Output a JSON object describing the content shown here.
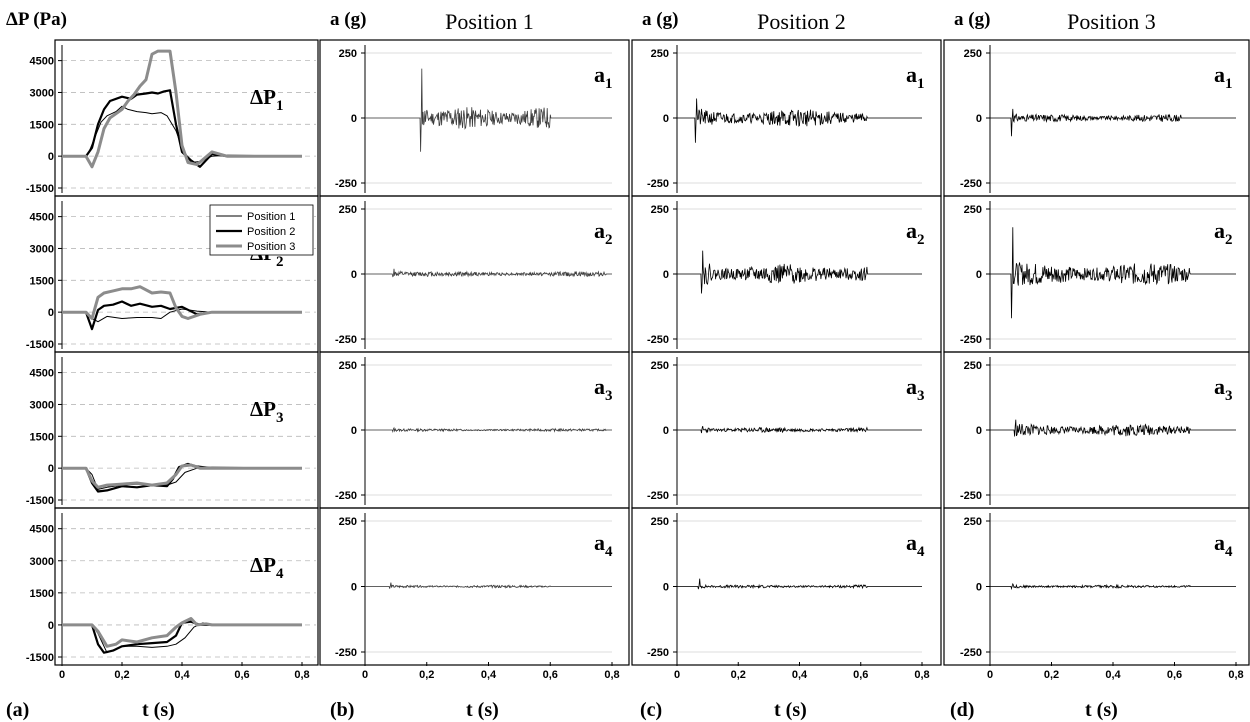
{
  "figure": {
    "column_letters": [
      "(a)",
      "(b)",
      "(c)",
      "(d)"
    ],
    "time_label": "t (s)"
  },
  "chart_data": [
    {
      "type": "line",
      "panel": "a",
      "ylabel": "ΔP (Pa)",
      "xlabel": "t (s)",
      "xlim": [
        0,
        0.8
      ],
      "ylim": [
        -1500,
        5000
      ],
      "xticks": [
        "0",
        "0,2",
        "0,4",
        "0,6",
        "0,8"
      ],
      "yticks": [
        "4500",
        "3000",
        "1500",
        "0",
        "-1500"
      ],
      "grid": "horizontal-dashed",
      "legend": {
        "placement": "top-right of second subplot",
        "entries": [
          "Position 1",
          "Position 2",
          "Position 3"
        ]
      },
      "colors": {
        "Position 1": "#000000",
        "Position 2": "#000000",
        "Position 3": "#8c8c8c"
      },
      "subplots": [
        {
          "label": "ΔP",
          "label_sub": "1",
          "series": [
            {
              "name": "Position 1",
              "x": [
                0,
                0.08,
                0.09,
                0.11,
                0.13,
                0.15,
                0.18,
                0.2,
                0.22,
                0.25,
                0.28,
                0.3,
                0.33,
                0.35,
                0.38,
                0.4,
                0.43,
                0.46,
                0.5,
                0.55,
                0.8
              ],
              "y": [
                0,
                0,
                200,
                900,
                1600,
                1900,
                2100,
                2350,
                2200,
                2100,
                2050,
                2000,
                2050,
                1900,
                1200,
                400,
                -300,
                -250,
                0,
                50,
                0
              ]
            },
            {
              "name": "Position 2",
              "x": [
                0,
                0.08,
                0.1,
                0.12,
                0.14,
                0.16,
                0.2,
                0.23,
                0.25,
                0.28,
                0.3,
                0.32,
                0.34,
                0.36,
                0.38,
                0.4,
                0.43,
                0.46,
                0.48,
                0.5,
                0.55,
                0.8
              ],
              "y": [
                0,
                0,
                400,
                1500,
                2200,
                2600,
                2800,
                2700,
                2900,
                2950,
                3000,
                2950,
                3050,
                3100,
                1500,
                200,
                -200,
                -500,
                -200,
                100,
                0,
                0
              ]
            },
            {
              "name": "Position 3",
              "x": [
                0,
                0.08,
                0.1,
                0.12,
                0.14,
                0.16,
                0.18,
                0.2,
                0.22,
                0.24,
                0.26,
                0.28,
                0.3,
                0.32,
                0.34,
                0.36,
                0.38,
                0.4,
                0.42,
                0.45,
                0.5,
                0.55,
                0.8
              ],
              "y": [
                0,
                0,
                -500,
                200,
                1300,
                1800,
                2000,
                2200,
                2600,
                2900,
                3300,
                3600,
                4800,
                4950,
                4950,
                4950,
                3000,
                500,
                -300,
                -400,
                200,
                0,
                0
              ]
            }
          ]
        },
        {
          "label": "ΔP",
          "label_sub": "2",
          "series": [
            {
              "name": "Position 1",
              "x": [
                0,
                0.08,
                0.1,
                0.12,
                0.15,
                0.2,
                0.25,
                0.3,
                0.33,
                0.36,
                0.4,
                0.45,
                0.5,
                0.8
              ],
              "y": [
                0,
                0,
                -300,
                -450,
                -200,
                -300,
                -250,
                -250,
                -300,
                0,
                150,
                50,
                0,
                0
              ]
            },
            {
              "name": "Position 2",
              "x": [
                0,
                0.08,
                0.1,
                0.12,
                0.14,
                0.17,
                0.2,
                0.23,
                0.26,
                0.3,
                0.33,
                0.36,
                0.4,
                0.45,
                0.5,
                0.8
              ],
              "y": [
                0,
                0,
                -800,
                100,
                300,
                350,
                500,
                300,
                400,
                250,
                300,
                150,
                250,
                -100,
                0,
                0
              ]
            },
            {
              "name": "Position 3",
              "x": [
                0,
                0.08,
                0.1,
                0.12,
                0.14,
                0.17,
                0.2,
                0.23,
                0.26,
                0.3,
                0.33,
                0.36,
                0.38,
                0.4,
                0.42,
                0.46,
                0.5,
                0.8
              ],
              "y": [
                0,
                0,
                -300,
                700,
                900,
                1000,
                1100,
                1100,
                1200,
                900,
                950,
                900,
                200,
                -200,
                -300,
                -100,
                0,
                0
              ]
            }
          ]
        },
        {
          "label": "ΔP",
          "label_sub": "3",
          "series": [
            {
              "name": "Position 1",
              "x": [
                0,
                0.08,
                0.1,
                0.12,
                0.15,
                0.2,
                0.25,
                0.3,
                0.35,
                0.38,
                0.41,
                0.45,
                0.5,
                0.8
              ],
              "y": [
                0,
                0,
                -300,
                -1000,
                -900,
                -800,
                -750,
                -800,
                -800,
                -650,
                -200,
                0,
                50,
                0
              ]
            },
            {
              "name": "Position 2",
              "x": [
                0,
                0.08,
                0.1,
                0.12,
                0.15,
                0.2,
                0.25,
                0.3,
                0.35,
                0.37,
                0.39,
                0.42,
                0.45,
                0.5,
                0.8
              ],
              "y": [
                0,
                0,
                -700,
                -1100,
                -1050,
                -850,
                -900,
                -800,
                -850,
                -500,
                50,
                200,
                80,
                0,
                0
              ]
            },
            {
              "name": "Position 3",
              "x": [
                0,
                0.08,
                0.1,
                0.12,
                0.15,
                0.2,
                0.25,
                0.3,
                0.35,
                0.38,
                0.4,
                0.43,
                0.46,
                0.5,
                0.8
              ],
              "y": [
                0,
                0,
                -600,
                -900,
                -800,
                -750,
                -700,
                -800,
                -700,
                -300,
                100,
                150,
                0,
                0,
                0
              ]
            }
          ]
        },
        {
          "label": "ΔP",
          "label_sub": "4",
          "series": [
            {
              "name": "Position 1",
              "x": [
                0,
                0.1,
                0.12,
                0.15,
                0.2,
                0.25,
                0.3,
                0.35,
                0.38,
                0.41,
                0.44,
                0.47,
                0.5,
                0.8
              ],
              "y": [
                0,
                0,
                -400,
                -1300,
                -1000,
                -1000,
                -1050,
                -1000,
                -900,
                -600,
                -100,
                100,
                0,
                0
              ]
            },
            {
              "name": "Position 2",
              "x": [
                0,
                0.1,
                0.12,
                0.14,
                0.17,
                0.2,
                0.25,
                0.3,
                0.35,
                0.38,
                0.4,
                0.43,
                0.46,
                0.5,
                0.8
              ],
              "y": [
                0,
                0,
                -900,
                -1300,
                -1200,
                -1000,
                -900,
                -850,
                -800,
                -500,
                100,
                150,
                0,
                0,
                0
              ]
            },
            {
              "name": "Position 3",
              "x": [
                0,
                0.1,
                0.12,
                0.15,
                0.18,
                0.2,
                0.25,
                0.3,
                0.35,
                0.38,
                0.4,
                0.43,
                0.45,
                0.48,
                0.5,
                0.8
              ],
              "y": [
                0,
                0,
                -300,
                -1000,
                -900,
                -700,
                -800,
                -600,
                -500,
                -100,
                100,
                300,
                0,
                50,
                0,
                0
              ]
            }
          ]
        }
      ]
    },
    {
      "type": "line",
      "panel": "b",
      "title": "Position 1",
      "ylabel": "a (g)",
      "xlabel": "t (s)",
      "xlim": [
        0,
        0.8
      ],
      "ylim": [
        -250,
        250
      ],
      "yticks": [
        "250",
        "0",
        "-250"
      ],
      "xticks": [
        "0",
        "0,2",
        "0,4",
        "0,6",
        "0,8"
      ],
      "grid": "horizontal-solid",
      "subplots": [
        {
          "label": "a",
          "label_sub": "1",
          "signal": {
            "onset": 0.18,
            "end": 0.6,
            "spike_up": 190,
            "spike_down": -130,
            "amplitude": 45,
            "seed": 11,
            "color": "#3a3a3a"
          }
        },
        {
          "label": "a",
          "label_sub": "2",
          "signal": {
            "onset": 0.09,
            "end": 0.78,
            "spike_up": 20,
            "spike_down": -10,
            "amplitude": 10,
            "seed": 12,
            "color": "#3a3a3a"
          }
        },
        {
          "label": "a",
          "label_sub": "3",
          "signal": {
            "onset": 0.09,
            "end": 0.78,
            "spike_up": 8,
            "spike_down": -6,
            "amplitude": 5,
            "seed": 13,
            "color": "#3a3a3a"
          }
        },
        {
          "label": "a",
          "label_sub": "4",
          "signal": {
            "onset": 0.08,
            "end": 0.6,
            "spike_up": 15,
            "spike_down": -8,
            "amplitude": 5,
            "seed": 14,
            "color": "#3a3a3a"
          }
        }
      ]
    },
    {
      "type": "line",
      "panel": "c",
      "title": "Position 2",
      "ylabel": "a (g)",
      "xlabel": "t (s)",
      "xlim": [
        0,
        0.8
      ],
      "ylim": [
        -250,
        250
      ],
      "yticks": [
        "250",
        "0",
        "-250"
      ],
      "xticks": [
        "0",
        "0,2",
        "0,4",
        "0,6",
        "0,8"
      ],
      "grid": "horizontal-solid",
      "subplots": [
        {
          "label": "a",
          "label_sub": "1",
          "signal": {
            "onset": 0.06,
            "end": 0.62,
            "spike_up": 75,
            "spike_down": -95,
            "amplitude": 35,
            "seed": 21,
            "color": "#000000"
          }
        },
        {
          "label": "a",
          "label_sub": "2",
          "signal": {
            "onset": 0.08,
            "end": 0.62,
            "spike_up": 90,
            "spike_down": -75,
            "amplitude": 40,
            "seed": 22,
            "color": "#000000"
          }
        },
        {
          "label": "a",
          "label_sub": "3",
          "signal": {
            "onset": 0.08,
            "end": 0.62,
            "spike_up": 15,
            "spike_down": -12,
            "amplitude": 10,
            "seed": 23,
            "color": "#000000"
          }
        },
        {
          "label": "a",
          "label_sub": "4",
          "signal": {
            "onset": 0.07,
            "end": 0.62,
            "spike_up": 30,
            "spike_down": -10,
            "amplitude": 6,
            "seed": 24,
            "color": "#000000"
          }
        }
      ]
    },
    {
      "type": "line",
      "panel": "d",
      "title": "Position 3",
      "ylabel": "a (g)",
      "xlabel": "t (s)",
      "xlim": [
        0,
        0.8
      ],
      "ylim": [
        -250,
        250
      ],
      "yticks": [
        "250",
        "0",
        "-250"
      ],
      "xticks": [
        "0",
        "0,2",
        "0,4",
        "0,6",
        "0,8"
      ],
      "grid": "horizontal-solid",
      "subplots": [
        {
          "label": "a",
          "label_sub": "1",
          "signal": {
            "onset": 0.07,
            "end": 0.62,
            "spike_up": 35,
            "spike_down": -70,
            "amplitude": 15,
            "seed": 31,
            "color": "#000000"
          }
        },
        {
          "label": "a",
          "label_sub": "2",
          "signal": {
            "onset": 0.07,
            "end": 0.65,
            "spike_up": 180,
            "spike_down": -170,
            "amplitude": 45,
            "seed": 32,
            "color": "#000000"
          }
        },
        {
          "label": "a",
          "label_sub": "3",
          "signal": {
            "onset": 0.08,
            "end": 0.65,
            "spike_up": 40,
            "spike_down": -25,
            "amplitude": 25,
            "seed": 33,
            "color": "#000000"
          }
        },
        {
          "label": "a",
          "label_sub": "4",
          "signal": {
            "onset": 0.07,
            "end": 0.65,
            "spike_up": 10,
            "spike_down": -8,
            "amplitude": 6,
            "seed": 34,
            "color": "#000000"
          }
        }
      ]
    }
  ]
}
